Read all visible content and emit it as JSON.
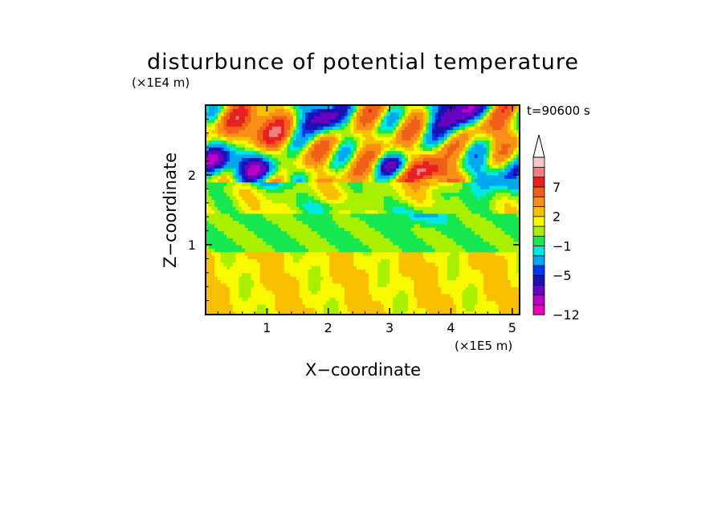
{
  "chart_data": {
    "type": "heatmap",
    "title": "disturbunce of potential temperature",
    "y_unit": "(×1E4 m)",
    "x_unit": "(×1E5 m)",
    "xlabel": "X−coordinate",
    "ylabel": "Z−coordinate",
    "time_label": "t=90600 s",
    "xlim": [
      0,
      5.12
    ],
    "ylim": [
      0,
      3.0
    ],
    "x_ticks": [
      1,
      2,
      3,
      4,
      5
    ],
    "y_ticks": [
      1,
      2
    ],
    "x_tick_labels": [
      "1",
      "2",
      "3",
      "4",
      "5"
    ],
    "y_tick_labels": [
      "1",
      "2"
    ],
    "colorbar": {
      "levels": [
        -12,
        -11,
        -9,
        -7,
        -5,
        -4,
        -2,
        -1,
        0,
        1,
        2,
        3,
        5,
        7,
        9,
        11,
        13
      ],
      "labeled_levels": [
        -12,
        -5,
        -1,
        2,
        7
      ],
      "labels": [
        "−12",
        "−5",
        "−1",
        "2",
        "7"
      ],
      "colors": [
        "#f000b8",
        "#b800c8",
        "#6a00c0",
        "#1c12b0",
        "#0038f0",
        "#00a8f0",
        "#00e8e0",
        "#18e850",
        "#a8f000",
        "#f8f800",
        "#f8c000",
        "#f89018",
        "#f06018",
        "#e82020",
        "#f08080",
        "#f8c8c8"
      ],
      "extend": "max"
    },
    "field_description_rows": [
      {
        "z_range": [
          0,
          0.9
        ],
        "dominant": "weak positive (yellow–orange)"
      },
      {
        "z_range": [
          0.9,
          1.5
        ],
        "dominant": "near zero (green)"
      },
      {
        "z_range": [
          1.5,
          2.0
        ],
        "dominant": "positive / slightly negative (yellow–cyan)"
      },
      {
        "z_range": [
          2.0,
          2.4
        ],
        "dominant": "negative bands (blue–purple)"
      },
      {
        "z_range": [
          2.4,
          3.0
        ],
        "dominant": "strong positive/negative wave cells (red / purple)"
      }
    ]
  }
}
